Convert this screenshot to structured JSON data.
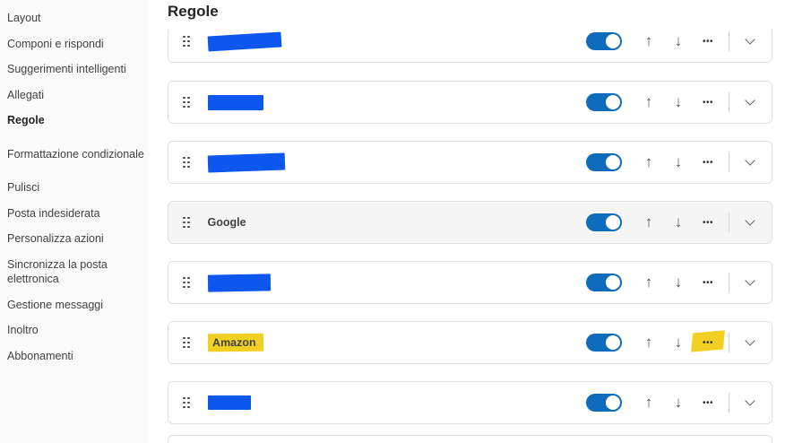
{
  "sidebar": {
    "items": [
      {
        "label": "Layout",
        "active": false
      },
      {
        "label": "Componi e rispondi",
        "active": false
      },
      {
        "label": "Suggerimenti intelligenti",
        "active": false
      },
      {
        "label": "Allegati",
        "active": false
      },
      {
        "label": "Regole",
        "active": true
      },
      {
        "label": "Formattazione condizionale",
        "active": false
      },
      {
        "label": "Pulisci",
        "active": false
      },
      {
        "label": "Posta indesiderata",
        "active": false
      },
      {
        "label": "Personalizza azioni",
        "active": false
      },
      {
        "label": "Sincronizza la posta elettronica",
        "active": false
      },
      {
        "label": "Gestione messaggi",
        "active": false
      },
      {
        "label": "Inoltro",
        "active": false
      },
      {
        "label": "Abbonamenti",
        "active": false
      }
    ]
  },
  "main": {
    "title": "Regole",
    "rows": [
      {
        "name": "",
        "redacted": true,
        "enabled": true
      },
      {
        "name": "",
        "redacted": true,
        "enabled": true
      },
      {
        "name": "",
        "redacted": true,
        "enabled": true
      },
      {
        "name": "Google",
        "redacted": false,
        "enabled": true,
        "selected": true
      },
      {
        "name": "",
        "redacted": true,
        "enabled": true
      },
      {
        "name": "Amazon",
        "redacted": false,
        "enabled": true,
        "name_highlighted": true,
        "more_highlighted": true
      },
      {
        "name": "",
        "redacted": true,
        "enabled": true
      }
    ]
  },
  "icons": {
    "up": "↑",
    "down": "↓",
    "more": "•••"
  },
  "colors": {
    "toggle_on": "#0f6cbd",
    "redaction_blue": "#0d57ee",
    "highlight_yellow": "#f2d023",
    "row_border": "#e0e0e0",
    "selected_row_bg": "#f5f5f5",
    "sidebar_bg": "#fafafa"
  }
}
